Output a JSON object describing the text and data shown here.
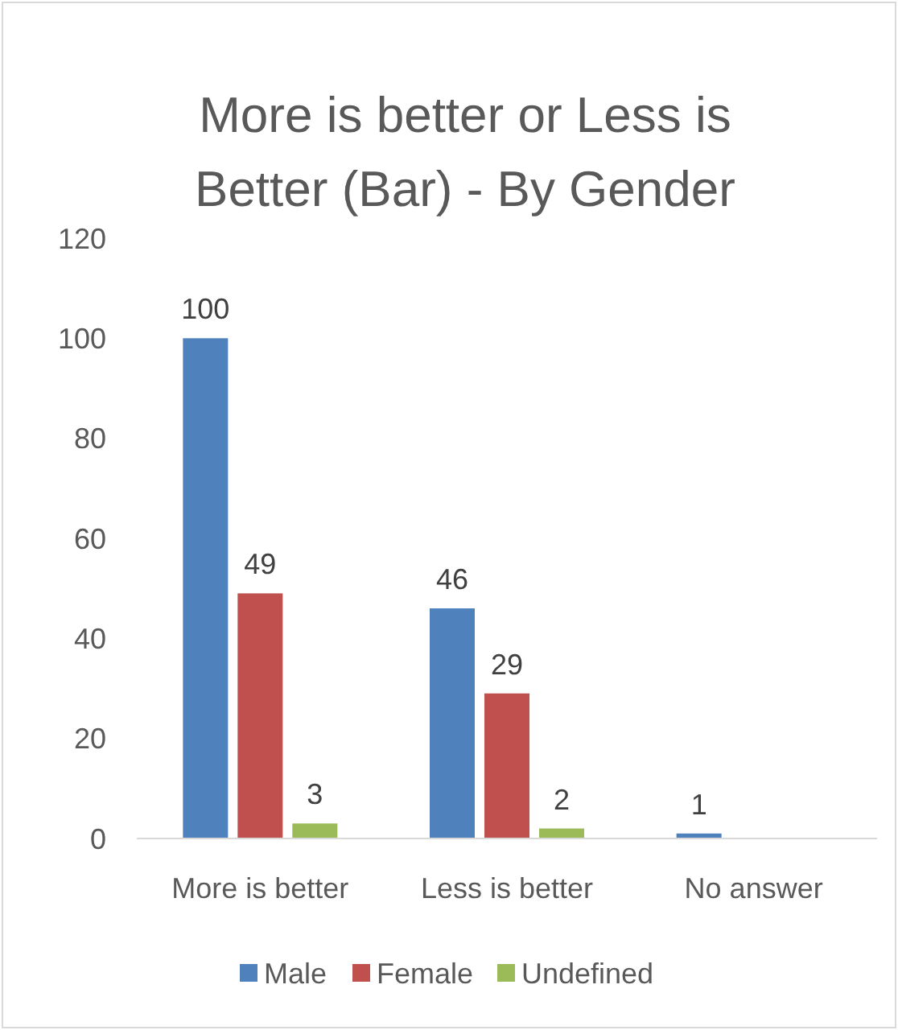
{
  "chart_data": {
    "type": "bar",
    "title": "More is better or Less is Better (Bar) - By Gender",
    "categories": [
      "More is better",
      "Less is better",
      "No answer"
    ],
    "series": [
      {
        "name": "Male",
        "color": "#4f81bd",
        "values": [
          100,
          46,
          1
        ]
      },
      {
        "name": "Female",
        "color": "#c0504d",
        "values": [
          49,
          29,
          null
        ]
      },
      {
        "name": "Undefined",
        "color": "#9bbb59",
        "values": [
          3,
          2,
          null
        ]
      }
    ],
    "ylim": [
      0,
      120
    ],
    "yticks": [
      0,
      20,
      40,
      60,
      80,
      100,
      120
    ],
    "grid": false,
    "legend": "bottom",
    "data_labels": true
  }
}
